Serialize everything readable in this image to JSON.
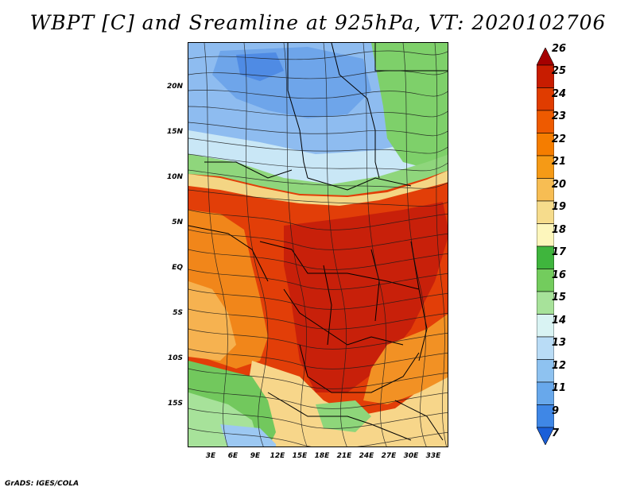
{
  "title": "WBPT [C] and Sreamline at 925hPa, VT: 2020102706",
  "footer": "GrADS: IGES/COLA",
  "map": {
    "y_labels": [
      "20N",
      "15N",
      "10N",
      "5N",
      "EQ",
      "5S",
      "10S",
      "15S"
    ],
    "x_labels": [
      "3E",
      "6E",
      "9E",
      "12E",
      "15E",
      "18E",
      "21E",
      "24E",
      "27E",
      "30E",
      "33E"
    ]
  },
  "colorbar": {
    "levels": [
      "26",
      "25",
      "24",
      "23",
      "22",
      "21",
      "20",
      "19",
      "18",
      "17",
      "16",
      "15",
      "14",
      "13",
      "12",
      "11",
      "9",
      "7"
    ],
    "colors": [
      "#a50000",
      "#c81c00",
      "#e03c00",
      "#ee5a00",
      "#f57d00",
      "#f59a16",
      "#f7bd53",
      "#f6dc8c",
      "#fdf6bc",
      "#3fb53d",
      "#73cc5d",
      "#a7e29a",
      "#d9f3f3",
      "#b9dcf6",
      "#8ec2f0",
      "#68a8eb",
      "#3f87e6",
      "#1a5fd8"
    ]
  }
}
